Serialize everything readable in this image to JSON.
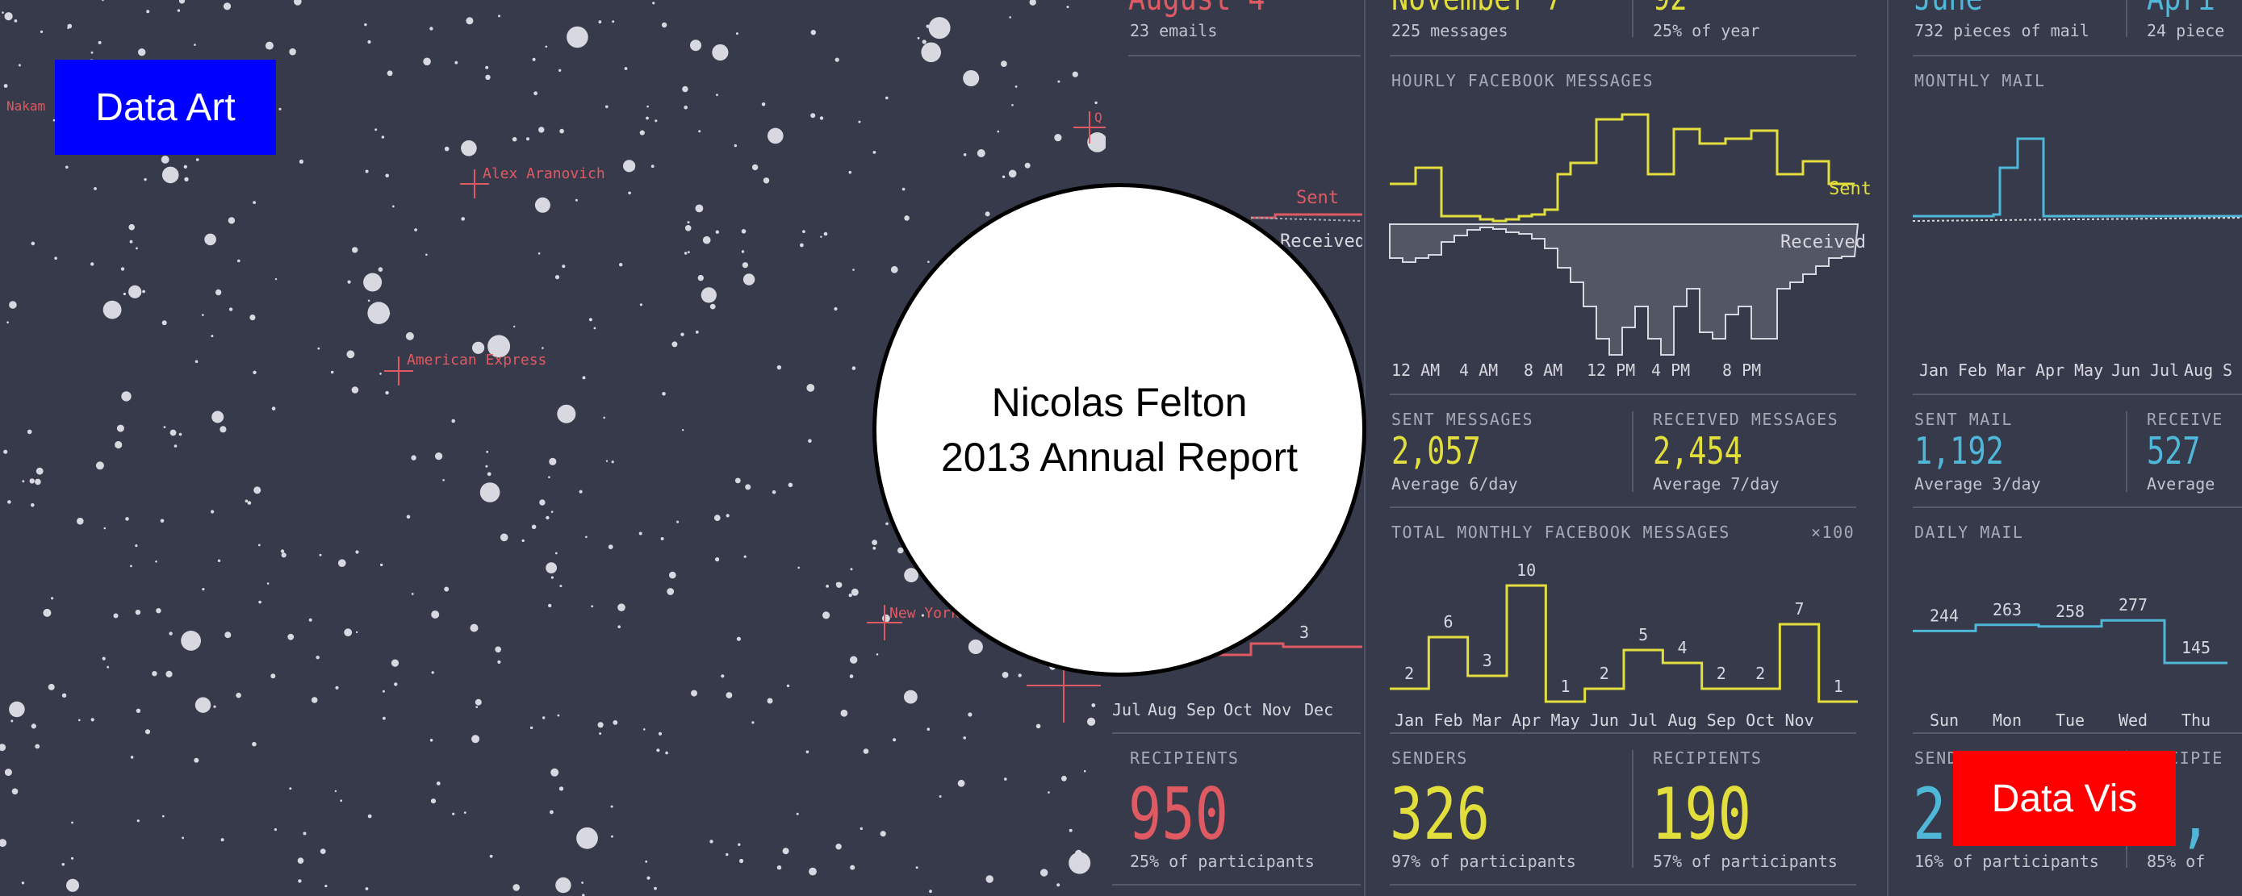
{
  "overlay": {
    "left_tag": "Data Art",
    "right_tag": "Data Vis",
    "circle_line1": "Nicolas Felton",
    "circle_line2": "2013 Annual Report",
    "colors": {
      "left_tag_bg": "#0000ff",
      "right_tag_bg": "#ff0000",
      "circle_bg": "#ffffff"
    }
  },
  "starmap": {
    "labels": [
      "Nakam",
      "Alex Aranovich",
      "American Express",
      "New York",
      "Q"
    ],
    "colors": {
      "background": "#373a4b",
      "star": "#d8d9e0",
      "label": "#df5a62"
    }
  },
  "email_panel": {
    "top_value": "August 4",
    "top_sub": "23 emails",
    "sent_label": "Sent",
    "received_label": "Received",
    "count_label": "3",
    "months": [
      "Jul",
      "Aug",
      "Sep",
      "Oct",
      "Nov",
      "Dec"
    ],
    "recipients_label": "RECIPIENTS",
    "recipients_value": "950",
    "recipients_sub": "25% of participants",
    "color": "#df5a62"
  },
  "facebook_panel": {
    "top_left_value": "November 7",
    "top_left_sub": "225 messages",
    "top_right_value": "92",
    "top_right_sub": "25% of year",
    "hourly_title": "HOURLY FACEBOOK MESSAGES",
    "sent_label": "Sent",
    "received_label": "Received",
    "hourly_axis": [
      "12 AM",
      "4 AM",
      "8 AM",
      "12 PM",
      "4 PM",
      "8 PM"
    ],
    "sent_title": "SENT MESSAGES",
    "sent_value": "2,057",
    "sent_sub": "Average 6/day",
    "received_title": "RECEIVED MESSAGES",
    "received_value": "2,454",
    "received_sub": "Average 7/day",
    "monthly_title": "TOTAL MONTHLY FACEBOOK MESSAGES",
    "monthly_multiplier": "×100",
    "senders_title": "SENDERS",
    "senders_value": "326",
    "senders_sub": "97% of participants",
    "recipients_title": "RECIPIENTS",
    "recipients_value": "190",
    "recipients_sub": "57% of participants",
    "color": "#e2df3c"
  },
  "mail_panel": {
    "top_left_value": "June",
    "top_left_sub": "732 pieces of mail",
    "top_right_value": "Apri",
    "top_right_sub": "24 piece",
    "monthly_title": "MONTHLY MAIL",
    "monthly_axis": [
      "Jan",
      "Feb",
      "Mar",
      "Apr",
      "May",
      "Jun",
      "Jul",
      "Aug",
      "S"
    ],
    "sent_title": "SENT MAIL",
    "sent_value": "1,192",
    "sent_sub": "Average 3/day",
    "received_title": "RECEIVE",
    "received_value": "527",
    "received_sub": "Average",
    "daily_title": "DAILY MAIL",
    "senders_title": "SENDERS",
    "senders_value": "2",
    "senders_sub": "16% of participants",
    "recipients_title": "RECIPIE",
    "recipients_value": "1,",
    "recipients_sub": "85% of",
    "color": "#4fb7d8"
  },
  "chart_data": [
    {
      "type": "bar",
      "categories": [
        "Jan",
        "Feb",
        "Mar",
        "Apr",
        "May",
        "Jun",
        "Jul",
        "Aug",
        "Sep",
        "Oct",
        "Nov",
        "Dec"
      ],
      "values": [
        2,
        6,
        3,
        10,
        1,
        2,
        5,
        4,
        2,
        2,
        7,
        1
      ],
      "title": "TOTAL MONTHLY FACEBOOK MESSAGES",
      "note": "×100",
      "color": "#e2df3c"
    },
    {
      "type": "line",
      "categories": [
        "Sun",
        "Mon",
        "Tue",
        "Wed",
        "Thu"
      ],
      "values": [
        244,
        263,
        258,
        277,
        145
      ],
      "title": "DAILY MAIL",
      "color": "#4fb7d8"
    }
  ]
}
